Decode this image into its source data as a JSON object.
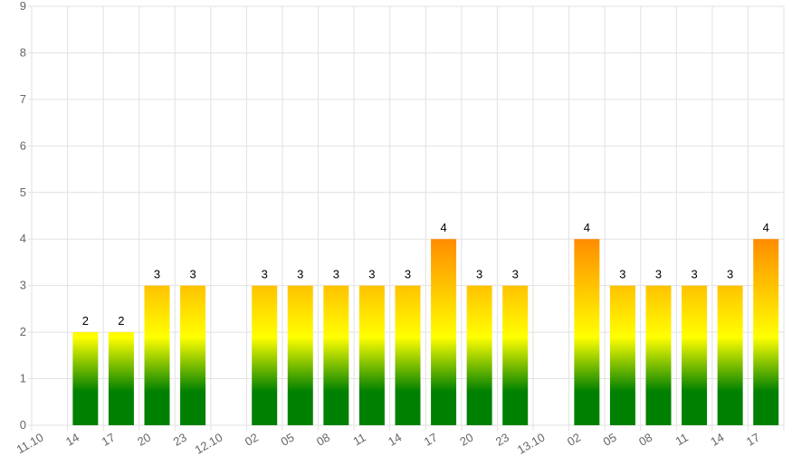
{
  "chart_data": {
    "type": "bar",
    "categories": [
      "11.10",
      "14",
      "17",
      "20",
      "23",
      "12.10",
      "02",
      "05",
      "08",
      "11",
      "14",
      "17",
      "20",
      "23",
      "13.10",
      "02",
      "05",
      "08",
      "11",
      "14",
      "17"
    ],
    "values": [
      null,
      2,
      2,
      3,
      3,
      null,
      3,
      3,
      3,
      3,
      3,
      4,
      3,
      3,
      null,
      4,
      3,
      3,
      3,
      3,
      4
    ],
    "colors": [
      "#008000",
      "#ffff00",
      "#ff8c00"
    ],
    "ylim": [
      0,
      9
    ],
    "yticks": [
      0,
      1,
      2,
      3,
      4,
      5,
      6,
      7,
      8,
      9
    ],
    "grid": true
  }
}
